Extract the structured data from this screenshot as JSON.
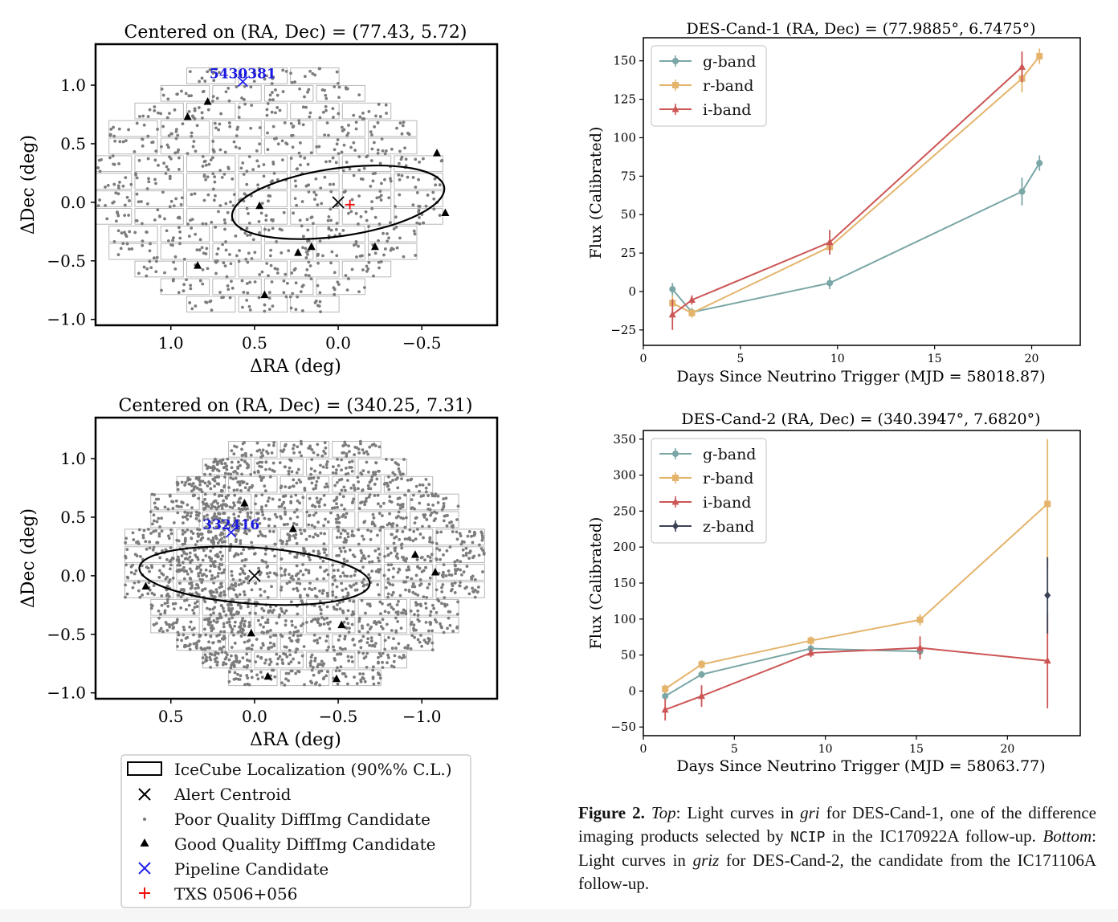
{
  "skymaps": [
    {
      "title": "Centered on (RA, Dec) = (77.43, 5.72)",
      "xlabel": "ΔRA (deg)",
      "ylabel": "ΔDec (deg)",
      "xlim": [
        1.45,
        -0.95
      ],
      "ylim": [
        -1.05,
        1.35
      ],
      "xticks": [
        1.0,
        0.5,
        0.0,
        -0.5
      ],
      "xtick_labels": [
        "1.0",
        "0.5",
        "0.0",
        "−0.5"
      ],
      "yticks": [
        1.0,
        0.5,
        0.0,
        -0.5,
        -1.0
      ],
      "ytick_labels": [
        "1.0",
        "0.5",
        "0.0",
        "−0.5",
        "−1.0"
      ],
      "ellipse": {
        "cx": 0.0,
        "cy": 0.0,
        "rx": 0.64,
        "ry": 0.29,
        "angle_deg": 8
      },
      "centroid": [
        0.0,
        0.0
      ],
      "txs": [
        -0.07,
        -0.02
      ],
      "pipeline": {
        "x": 0.57,
        "y": 1.03,
        "label": "5430381"
      },
      "good": [
        [
          0.9,
          0.73
        ],
        [
          0.78,
          0.86
        ],
        [
          0.47,
          -0.03
        ],
        [
          -0.59,
          0.42
        ],
        [
          -0.64,
          -0.09
        ],
        [
          -0.22,
          -0.38
        ],
        [
          0.24,
          -0.43
        ],
        [
          0.16,
          -0.38
        ],
        [
          0.84,
          -0.54
        ],
        [
          0.44,
          -0.79
        ]
      ],
      "poor_density": "sparse"
    },
    {
      "title": "Centered on (RA, Dec) = (340.25, 7.31)",
      "xlabel": "ΔRA (deg)",
      "ylabel": "ΔDec (deg)",
      "xlim": [
        0.95,
        -1.45
      ],
      "ylim": [
        -1.05,
        1.35
      ],
      "xticks": [
        0.5,
        0.0,
        -0.5,
        -1.0
      ],
      "xtick_labels": [
        "0.5",
        "0.0",
        "−0.5",
        "−1.0"
      ],
      "yticks": [
        1.0,
        0.5,
        0.0,
        -0.5,
        -1.0
      ],
      "ytick_labels": [
        "1.0",
        "0.5",
        "0.0",
        "−0.5",
        "−1.0"
      ],
      "ellipse": {
        "cx": 0.0,
        "cy": 0.0,
        "rx": 0.69,
        "ry": 0.24,
        "angle_deg": -4
      },
      "centroid": [
        0.0,
        0.0
      ],
      "pipeline": {
        "x": 0.14,
        "y": 0.37,
        "label": "332416"
      },
      "good": [
        [
          0.65,
          -0.09
        ],
        [
          0.06,
          0.62
        ],
        [
          -0.23,
          0.4
        ],
        [
          -0.96,
          0.18
        ],
        [
          -1.08,
          0.03
        ],
        [
          0.02,
          -0.49
        ],
        [
          -0.52,
          -0.42
        ],
        [
          -0.08,
          -0.86
        ],
        [
          -0.49,
          -0.88
        ]
      ],
      "poor_density": "dense"
    }
  ],
  "legend": {
    "items": [
      {
        "label": "IceCube Localization (90%% C.L.)",
        "marker": "ellipse-outline"
      },
      {
        "label": "Alert Centroid",
        "marker": "x-black"
      },
      {
        "label": "Poor Quality DiffImg Candidate",
        "marker": "dot-gray"
      },
      {
        "label": "Good Quality DiffImg Candidate",
        "marker": "triangle-black"
      },
      {
        "label": "Pipeline Candidate",
        "marker": "x-blue"
      },
      {
        "label": "TXS 0506+056",
        "marker": "plus-red"
      }
    ]
  },
  "chart_data": [
    {
      "type": "line",
      "title": "DES-Cand-1   (RA, Dec) = (77.9885°, 6.7475°)",
      "xlabel": "Days Since Neutrino Trigger (MJD = 58018.87)",
      "ylabel": "Flux (Calibrated)",
      "xlim": [
        0,
        22.5
      ],
      "ylim": [
        -35,
        165
      ],
      "xticks": [
        0,
        5,
        10,
        15,
        20
      ],
      "yticks": [
        -25,
        0,
        25,
        50,
        75,
        100,
        125,
        150
      ],
      "legend_position": "top-left",
      "series": [
        {
          "name": "g-band",
          "color": "#7aa6a6",
          "marker": "circle",
          "points": [
            [
              1.5,
              1.5,
              4
            ],
            [
              2.5,
              -13.5,
              3
            ],
            [
              9.6,
              5.5,
              4
            ],
            [
              19.5,
              65,
              9
            ],
            [
              20.4,
              83.5,
              5
            ]
          ]
        },
        {
          "name": "r-band",
          "color": "#e4b46c",
          "marker": "square",
          "points": [
            [
              1.5,
              -7.5,
              5
            ],
            [
              2.5,
              -14,
              3
            ],
            [
              9.6,
              29,
              5
            ],
            [
              19.5,
              138.5,
              9
            ],
            [
              20.4,
              153,
              5
            ]
          ]
        },
        {
          "name": "i-band",
          "color": "#cc5555",
          "marker": "triangle",
          "points": [
            [
              1.5,
              -15,
              10
            ],
            [
              2.5,
              -5.5,
              3
            ],
            [
              9.6,
              32,
              8
            ],
            [
              19.5,
              146,
              10
            ]
          ]
        }
      ]
    },
    {
      "type": "line",
      "title": "DES-Cand-2   (RA, Dec) = (340.3947°, 7.6820°)",
      "xlabel": "Days Since Neutrino Trigger (MJD = 58063.77)",
      "ylabel": "Flux (Calibrated)",
      "xlim": [
        0,
        24
      ],
      "ylim": [
        -62,
        362
      ],
      "xticks": [
        0,
        5,
        10,
        15,
        20
      ],
      "yticks": [
        -50,
        0,
        50,
        100,
        150,
        200,
        250,
        300,
        350
      ],
      "legend_position": "top-left",
      "series": [
        {
          "name": "g-band",
          "color": "#7aa6a6",
          "marker": "circle",
          "points": [
            [
              1.2,
              -7,
              6
            ],
            [
              3.2,
              23,
              5
            ],
            [
              9.2,
              59,
              5
            ],
            [
              15.2,
              55,
              5
            ]
          ]
        },
        {
          "name": "r-band",
          "color": "#e4b46c",
          "marker": "square",
          "points": [
            [
              1.2,
              3,
              6
            ],
            [
              3.2,
              37,
              6
            ],
            [
              9.2,
              70,
              6
            ],
            [
              15.2,
              99,
              8
            ],
            [
              22.2,
              260,
              90
            ]
          ]
        },
        {
          "name": "i-band",
          "color": "#cc5555",
          "marker": "triangle",
          "points": [
            [
              1.2,
              -26,
              15
            ],
            [
              3.2,
              -7,
              15
            ],
            [
              9.2,
              53,
              6
            ],
            [
              15.2,
              60,
              16
            ],
            [
              22.2,
              42,
              66
            ]
          ]
        },
        {
          "name": "z-band",
          "color": "#3a4256",
          "marker": "diamond",
          "points": [
            [
              22.2,
              133,
              53
            ]
          ]
        }
      ]
    }
  ],
  "caption": {
    "bold": "Figure 2.",
    "top_label": "Top",
    "top_text_1": ": Light curves in ",
    "top_filters": "gri",
    "top_text_2": " for DES-Cand-1, one of the difference imaging products selected by ",
    "top_code": "NCIP",
    "top_text_3": " in the IC170922A follow-up. ",
    "bottom_label": "Bottom",
    "bottom_text_1": ": Light curves in ",
    "bottom_filters": "griz",
    "bottom_text_2": " for DES-Cand-2, the candidate from the IC171106A follow-up."
  }
}
